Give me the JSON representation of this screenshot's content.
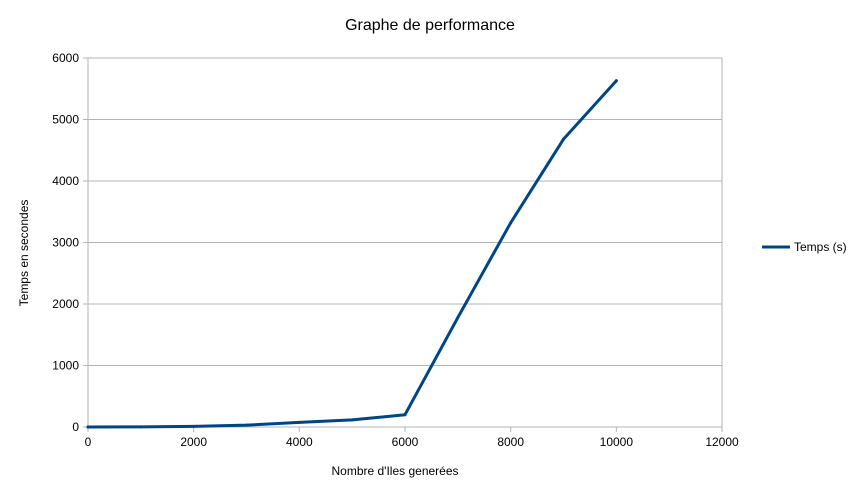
{
  "chart_data": {
    "type": "line",
    "title": "Graphe de performance",
    "xlabel": "Nombre d'Iles generées",
    "ylabel": "Temps en secondes",
    "xlim": [
      0,
      12000
    ],
    "ylim": [
      0,
      6000
    ],
    "x_ticks": [
      0,
      2000,
      4000,
      6000,
      8000,
      10000,
      12000
    ],
    "y_ticks": [
      0,
      1000,
      2000,
      3000,
      4000,
      5000,
      6000
    ],
    "grid": "horizontal",
    "legend_position": "right",
    "series": [
      {
        "name": "Temps (s)",
        "color": "#004586",
        "x": [
          0,
          1000,
          2000,
          3000,
          4000,
          5000,
          6000,
          7000,
          8000,
          9000,
          10000
        ],
        "y": [
          0,
          2,
          10,
          30,
          75,
          115,
          200,
          1780,
          3320,
          4680,
          5630
        ]
      }
    ]
  }
}
